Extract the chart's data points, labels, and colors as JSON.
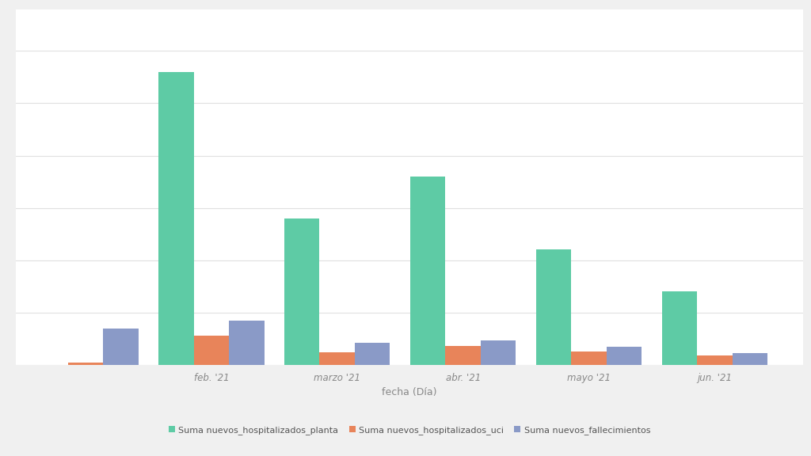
{
  "categories": [
    "feb. '21",
    "marzo '21",
    "abr. '21",
    "mayo '21",
    "jun. '21"
  ],
  "hospitalizados_planta": [
    28000,
    14000,
    18000,
    11000,
    7000
  ],
  "hospitalizados_uci": [
    2800,
    1200,
    1800,
    1300,
    900
  ],
  "fallecimientos": [
    4200,
    2100,
    2300,
    1700,
    1100
  ],
  "jan_uci": 200,
  "jan_fallecimientos": 3500,
  "color_planta": "#5ecba5",
  "color_uci": "#e8845a",
  "color_fallecimientos": "#8a9ac7",
  "xlabel": "fecha (Día)",
  "legend_planta": "Suma nuevos_hospitalizados_planta",
  "legend_uci": "Suma nuevos_hospitalizados_uci",
  "legend_fallecimientos": "Suma nuevos_fallecimientos",
  "background_color": "#f0f0f0",
  "plot_background": "#ffffff",
  "bar_width": 0.28,
  "ylim": [
    0,
    34000
  ],
  "grid_color": "#e0e0e0",
  "grid_linewidth": 0.8,
  "xlabel_fontsize": 9,
  "tick_fontsize": 8.5,
  "tick_color": "#888888",
  "legend_fontsize": 8
}
